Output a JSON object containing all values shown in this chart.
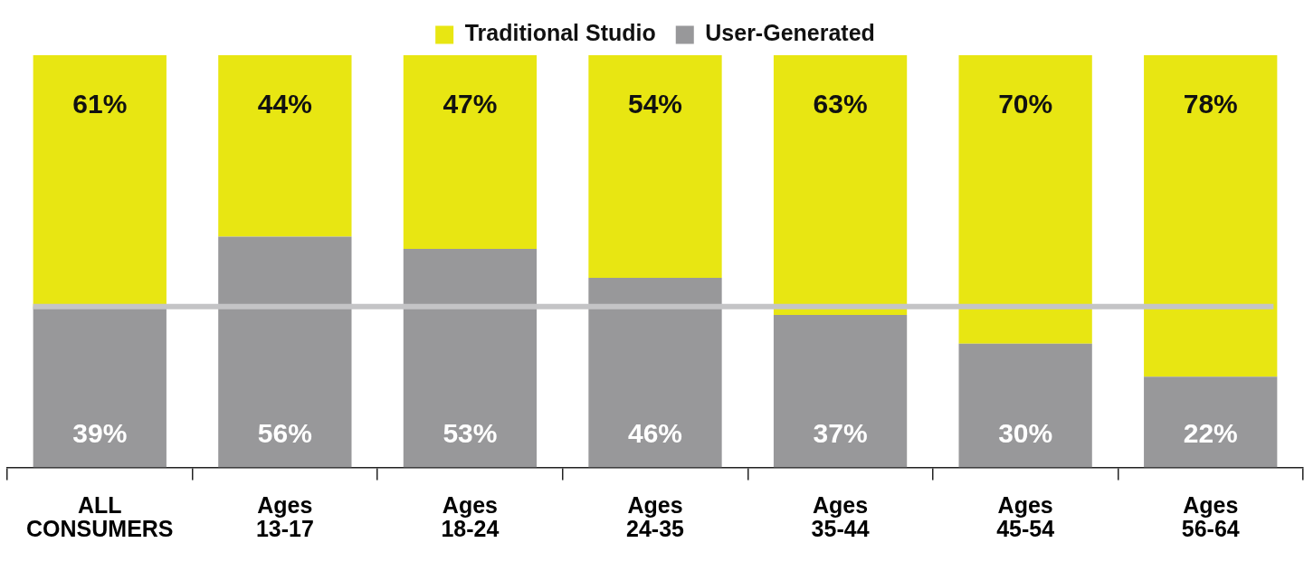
{
  "chart_data": {
    "type": "bar",
    "stacked": true,
    "legend": "top",
    "categories": [
      "ALL\nCONSUMERS",
      "Ages\n13-17",
      "Ages\n18-24",
      "Ages\n24-35",
      "Ages\n35-44",
      "Ages\n45-54",
      "Ages\n56-64"
    ],
    "ylim": [
      0,
      100
    ],
    "grid": false,
    "tick_labels": "x",
    "series": [
      {
        "name": "User-Generated",
        "color": "#98989a",
        "values": [
          39,
          56,
          53,
          46,
          37,
          30,
          22
        ],
        "value_labels": [
          "39%",
          "56%",
          "53%",
          "46%",
          "37%",
          "30%",
          "22%"
        ]
      },
      {
        "name": "Traditional Studio",
        "color": "#e8e612",
        "values": [
          61,
          44,
          47,
          54,
          63,
          70,
          78
        ],
        "value_labels": [
          "61%",
          "44%",
          "47%",
          "54%",
          "63%",
          "70%",
          "78%"
        ]
      }
    ],
    "ref_lines": [
      {
        "axis": "y",
        "value": 39,
        "label": null,
        "color": "#c4c4c6"
      }
    ]
  }
}
